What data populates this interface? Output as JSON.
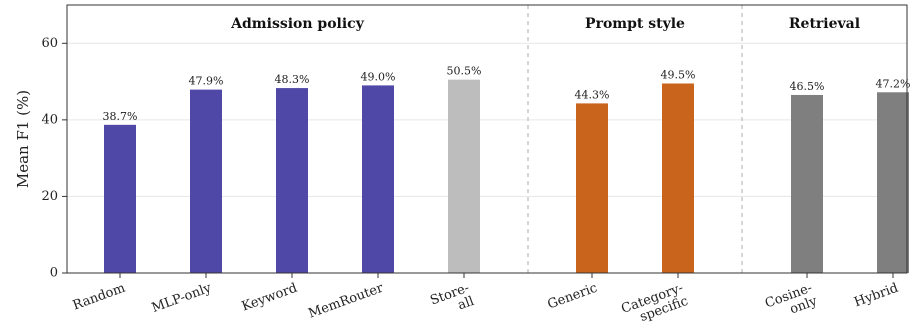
{
  "chart_data": {
    "type": "bar",
    "title": "",
    "xlabel": "",
    "ylabel": "Mean F1 (%)",
    "ylim": [
      0,
      70
    ],
    "yticks": [
      0,
      20,
      40,
      60
    ],
    "grid": "horizontal",
    "colors": {
      "admission": "#5048a6",
      "store_all": "#bdbdbd",
      "prompt": "#c8641c",
      "retrieval": "#7f7f7f"
    },
    "groups": [
      {
        "name": "Admission policy",
        "categories": [
          {
            "label": [
              "Random"
            ],
            "value": 38.7,
            "display": "38.7%",
            "color": "#5048a6"
          },
          {
            "label": [
              "MLP-only"
            ],
            "value": 47.9,
            "display": "47.9%",
            "color": "#5048a6"
          },
          {
            "label": [
              "Keyword"
            ],
            "value": 48.3,
            "display": "48.3%",
            "color": "#5048a6"
          },
          {
            "label": [
              "MemRouter"
            ],
            "value": 49.0,
            "display": "49.0%",
            "color": "#5048a6"
          },
          {
            "label": [
              "Store-",
              "all"
            ],
            "value": 50.5,
            "display": "50.5%",
            "color": "#bdbdbd"
          }
        ]
      },
      {
        "name": "Prompt style",
        "categories": [
          {
            "label": [
              "Generic"
            ],
            "value": 44.3,
            "display": "44.3%",
            "color": "#c8641c"
          },
          {
            "label": [
              "Category-",
              "specific"
            ],
            "value": 49.5,
            "display": "49.5%",
            "color": "#c8641c"
          }
        ]
      },
      {
        "name": "Retrieval",
        "categories": [
          {
            "label": [
              "Cosine-",
              "only"
            ],
            "value": 46.5,
            "display": "46.5%",
            "color": "#7f7f7f"
          },
          {
            "label": [
              "Hybrid"
            ],
            "value": 47.2,
            "display": "47.2%",
            "color": "#7f7f7f"
          }
        ]
      }
    ]
  }
}
